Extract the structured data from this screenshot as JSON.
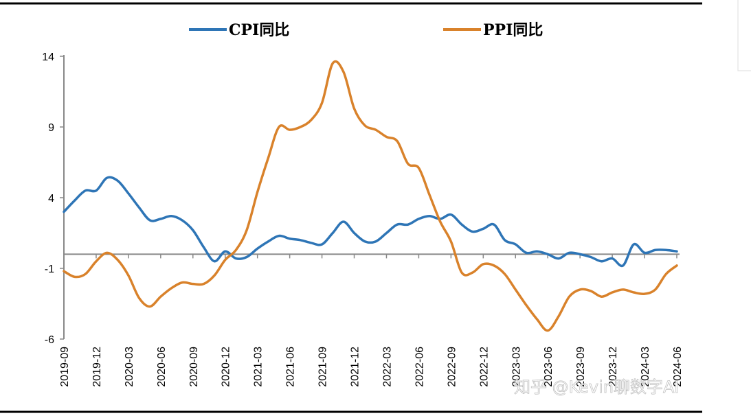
{
  "chart_data": {
    "type": "line",
    "title": "",
    "xlabel": "",
    "ylabel": "",
    "ylim": [
      -6,
      14
    ],
    "yticks": [
      14,
      9,
      4,
      -1,
      -6
    ],
    "grid": false,
    "legend_position": "top",
    "x": [
      "2019-09",
      "2019-10",
      "2019-11",
      "2019-12",
      "2020-01",
      "2020-02",
      "2020-03",
      "2020-04",
      "2020-05",
      "2020-06",
      "2020-07",
      "2020-08",
      "2020-09",
      "2020-10",
      "2020-11",
      "2020-12",
      "2021-01",
      "2021-02",
      "2021-03",
      "2021-04",
      "2021-05",
      "2021-06",
      "2021-07",
      "2021-08",
      "2021-09",
      "2021-10",
      "2021-11",
      "2021-12",
      "2022-01",
      "2022-02",
      "2022-03",
      "2022-04",
      "2022-05",
      "2022-06",
      "2022-07",
      "2022-08",
      "2022-09",
      "2022-10",
      "2022-11",
      "2022-12",
      "2023-01",
      "2023-02",
      "2023-03",
      "2023-04",
      "2023-05",
      "2023-06",
      "2023-07",
      "2023-08",
      "2023-09",
      "2023-10",
      "2023-11",
      "2023-12",
      "2024-01",
      "2024-02",
      "2024-03",
      "2024-04",
      "2024-05",
      "2024-06"
    ],
    "xtick_labels": [
      "2019-09",
      "2019-12",
      "2020-03",
      "2020-06",
      "2020-09",
      "2020-12",
      "2021-03",
      "2021-06",
      "2021-09",
      "2021-12",
      "2022-03",
      "2022-06",
      "2022-09",
      "2022-12",
      "2023-03",
      "2023-06",
      "2023-09",
      "2023-12",
      "2024-03",
      "2024-06"
    ],
    "series": [
      {
        "name": "CPI同比",
        "color": "#2e75b6",
        "values": [
          3.0,
          3.8,
          4.5,
          4.5,
          5.4,
          5.2,
          4.3,
          3.3,
          2.4,
          2.5,
          2.7,
          2.4,
          1.7,
          0.5,
          -0.5,
          0.2,
          -0.3,
          -0.2,
          0.4,
          0.9,
          1.3,
          1.1,
          1.0,
          0.8,
          0.7,
          1.5,
          2.3,
          1.5,
          0.9,
          0.9,
          1.5,
          2.1,
          2.1,
          2.5,
          2.7,
          2.5,
          2.8,
          2.1,
          1.6,
          1.8,
          2.1,
          1.0,
          0.7,
          0.1,
          0.2,
          0.0,
          -0.3,
          0.1,
          0.0,
          -0.2,
          -0.5,
          -0.3,
          -0.8,
          0.7,
          0.1,
          0.3,
          0.3,
          0.2
        ]
      },
      {
        "name": "PPI同比",
        "color": "#d9822b",
        "values": [
          -1.2,
          -1.6,
          -1.4,
          -0.5,
          0.1,
          -0.4,
          -1.5,
          -3.1,
          -3.7,
          -3.0,
          -2.4,
          -2.0,
          -2.1,
          -2.1,
          -1.5,
          -0.4,
          0.3,
          1.7,
          4.4,
          6.8,
          9.0,
          8.8,
          9.0,
          9.5,
          10.7,
          13.5,
          12.9,
          10.3,
          9.1,
          8.8,
          8.3,
          8.0,
          6.4,
          6.1,
          4.2,
          2.3,
          0.9,
          -1.3,
          -1.3,
          -0.7,
          -0.8,
          -1.4,
          -2.5,
          -3.6,
          -4.6,
          -5.4,
          -4.4,
          -3.0,
          -2.5,
          -2.6,
          -3.0,
          -2.7,
          -2.5,
          -2.7,
          -2.8,
          -2.5,
          -1.4,
          -0.8
        ]
      }
    ]
  },
  "watermark": "知乎 @Kevin聊数字AI"
}
